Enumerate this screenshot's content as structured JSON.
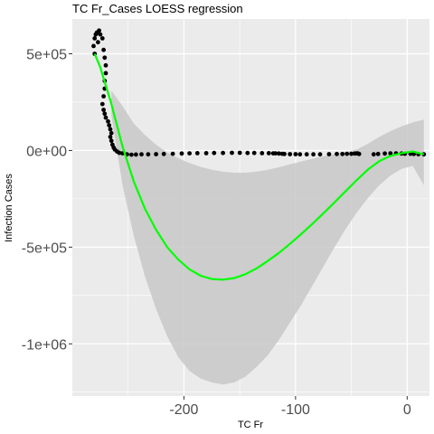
{
  "chart_data": {
    "type": "scatter",
    "title": "TC Fr_Cases LOESS regression",
    "xlabel": "TC Fr",
    "ylabel": "Infection Cases",
    "xlim": [
      -300,
      20
    ],
    "ylim": [
      -1270000,
      680000
    ],
    "x_ticks": [
      {
        "value": -200,
        "label": "-200"
      },
      {
        "value": -100,
        "label": "-100"
      },
      {
        "value": 0,
        "label": "0"
      }
    ],
    "y_ticks": [
      {
        "value": 500000,
        "label": "5e+05"
      },
      {
        "value": 0,
        "label": "0e+00"
      },
      {
        "value": -500000,
        "label": "-5e+05"
      },
      {
        "value": -1000000,
        "label": "-1e+06"
      }
    ],
    "grid": true,
    "colors": {
      "panel": "#ebebeb",
      "grid_major": "#ffffff",
      "points": "#000000",
      "fit_line": "#00ff00",
      "ribbon": "#c8c8c8"
    },
    "series": [
      {
        "type": "points",
        "points": [
          [
            -280,
            500000
          ],
          [
            -281,
            540000
          ],
          [
            -280,
            580000
          ],
          [
            -279,
            600000
          ],
          [
            -277,
            560000
          ],
          [
            -278,
            610000
          ],
          [
            -276,
            620000
          ],
          [
            -275,
            600000
          ],
          [
            -273,
            580000
          ],
          [
            -272,
            520000
          ],
          [
            -271,
            480000
          ],
          [
            -270,
            440000
          ],
          [
            -270,
            400000
          ],
          [
            -271,
            360000
          ],
          [
            -271,
            320000
          ],
          [
            -272,
            280000
          ],
          [
            -273,
            240000
          ],
          [
            -272,
            210000
          ],
          [
            -271,
            190000
          ],
          [
            -270,
            170000
          ],
          [
            -268,
            150000
          ],
          [
            -267,
            130000
          ],
          [
            -266,
            110000
          ],
          [
            -265,
            90000
          ],
          [
            -266,
            70000
          ],
          [
            -265,
            50000
          ],
          [
            -264,
            30000
          ],
          [
            -263,
            15000
          ],
          [
            -262,
            5000
          ],
          [
            -260,
            -5000
          ],
          [
            -258,
            -12000
          ],
          [
            -255,
            -15000
          ],
          [
            -251,
            -20000
          ],
          [
            -247,
            -22000
          ],
          [
            -243,
            -21000
          ],
          [
            -238,
            -20000
          ],
          [
            -232,
            -20000
          ],
          [
            -225,
            -19000
          ],
          [
            -218,
            -18000
          ],
          [
            -210,
            -17000
          ],
          [
            -202,
            -16000
          ],
          [
            -195,
            -15000
          ],
          [
            -188,
            -14000
          ],
          [
            -180,
            -14000
          ],
          [
            -173,
            -13000
          ],
          [
            -165,
            -13000
          ],
          [
            -157,
            -12000
          ],
          [
            -150,
            -12000
          ],
          [
            -143,
            -13000
          ],
          [
            -137,
            -13000
          ],
          [
            -130,
            -14000
          ],
          [
            -124,
            -14000
          ],
          [
            -120,
            -15000
          ],
          [
            -118,
            -15000
          ],
          [
            -115,
            -16000
          ],
          [
            -112,
            -17000
          ],
          [
            -110,
            -18000
          ],
          [
            -105,
            -19000
          ],
          [
            -100,
            -19000
          ],
          [
            -96,
            -20000
          ],
          [
            -90,
            -20000
          ],
          [
            -84,
            -20000
          ],
          [
            -78,
            -20000
          ],
          [
            -70,
            -19000
          ],
          [
            -63,
            -18000
          ],
          [
            -58,
            -18000
          ],
          [
            -54,
            -17000
          ],
          [
            -50,
            -17000
          ],
          [
            -47,
            -16000
          ],
          [
            -45,
            -15000
          ],
          [
            -44,
            -16000
          ],
          [
            -43,
            -18000
          ],
          [
            -30,
            -20000
          ],
          [
            -26,
            -18000
          ],
          [
            -20,
            -16000
          ],
          [
            -15,
            -15000
          ],
          [
            -10,
            -15000
          ],
          [
            -5,
            -16000
          ],
          [
            -2,
            -17000
          ],
          [
            3,
            -17000
          ],
          [
            6,
            -18000
          ],
          [
            10,
            -19000
          ],
          [
            15,
            -20000
          ]
        ]
      },
      {
        "type": "line",
        "name": "LOESS fit",
        "x": [
          -280,
          -275,
          -265,
          -255,
          -245,
          -235,
          -225,
          -215,
          -205,
          -195,
          -185,
          -175,
          -165,
          -155,
          -145,
          -135,
          -125,
          -115,
          -105,
          -95,
          -85,
          -75,
          -65,
          -55,
          -45,
          -35,
          -25,
          -15,
          -5,
          5,
          15
        ],
        "y": [
          500000,
          430000,
          240000,
          20000,
          -160000,
          -300000,
          -410000,
          -500000,
          -565000,
          -615000,
          -648000,
          -665000,
          -668000,
          -660000,
          -640000,
          -610000,
          -572000,
          -530000,
          -483000,
          -433000,
          -380000,
          -325000,
          -268000,
          -210000,
          -152000,
          -98000,
          -55000,
          -28000,
          -14000,
          -5000,
          -20000
        ]
      },
      {
        "type": "band",
        "name": "confidence interval",
        "x": [
          -265,
          -255,
          -245,
          -235,
          -225,
          -215,
          -205,
          -195,
          -185,
          -175,
          -165,
          -155,
          -145,
          -135,
          -125,
          -115,
          -105,
          -95,
          -85,
          -75,
          -65,
          -55,
          -45,
          -35,
          -25,
          -15,
          -5,
          5,
          15
        ],
        "upper": [
          310000,
          230000,
          140000,
          80000,
          30000,
          -10000,
          -40000,
          -65000,
          -85000,
          -100000,
          -110000,
          -115000,
          -115000,
          -110000,
          -100000,
          -87000,
          -72000,
          -57000,
          -43000,
          -30000,
          -18000,
          -8000,
          5000,
          35000,
          70000,
          100000,
          125000,
          145000,
          160000
        ],
        "lower": [
          180000,
          -180000,
          -440000,
          -650000,
          -820000,
          -960000,
          -1070000,
          -1140000,
          -1180000,
          -1200000,
          -1210000,
          -1200000,
          -1170000,
          -1120000,
          -1060000,
          -980000,
          -890000,
          -800000,
          -700000,
          -600000,
          -500000,
          -405000,
          -320000,
          -245000,
          -180000,
          -130000,
          -95000,
          -80000,
          -180000
        ]
      }
    ]
  }
}
